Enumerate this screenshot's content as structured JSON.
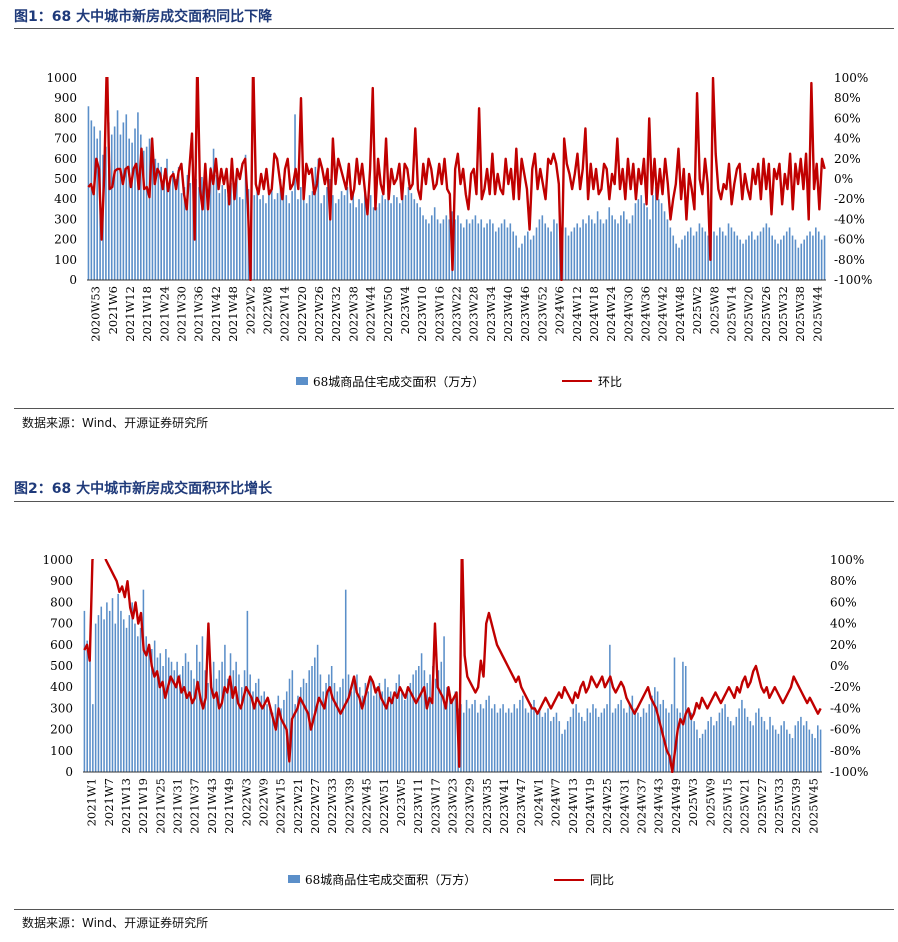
{
  "figures": [
    {
      "title": "图1：68 大中城市新房成交面积同比下降",
      "source": "数据来源：Wind、开源证券研究所",
      "legend": {
        "bar_label": "68城商品住宅成交面积（万方）",
        "line_label": "环比"
      },
      "colors": {
        "bar": "#5b8fc9",
        "line": "#c00000"
      }
    },
    {
      "title": "图2：68 大中城市新房成交面积环比增长",
      "source": "数据来源：Wind、开源证券研究所",
      "legend": {
        "bar_label": "68城商品住宅成交面积（万方）",
        "line_label": "同比"
      },
      "colors": {
        "bar": "#5b8fc9",
        "line": "#c00000"
      }
    }
  ],
  "chart_data": [
    {
      "type": "bar+line",
      "left_axis": {
        "range": [
          0,
          1000
        ],
        "ticks": [
          0,
          100,
          200,
          300,
          400,
          500,
          600,
          700,
          800,
          900,
          1000
        ]
      },
      "right_axis": {
        "range": [
          -100,
          100
        ],
        "ticks": [
          "-100%",
          "-80%",
          "-60%",
          "-40%",
          "-20%",
          "0%",
          "20%",
          "40%",
          "60%",
          "80%",
          "100%"
        ]
      },
      "x_tick_labels": [
        "2020W53",
        "2021W6",
        "2021W12",
        "2021W18",
        "2021W24",
        "2021W30",
        "2021W36",
        "2021W42",
        "2021W48",
        "2022W2",
        "2022W8",
        "2022W14",
        "2022W20",
        "2022W26",
        "2022W32",
        "2022W38",
        "2022W44",
        "2022W50",
        "2023W4",
        "2023W10",
        "2023W16",
        "2023W22",
        "2023W28",
        "2023W34",
        "2023W40",
        "2023W46",
        "2023W52",
        "2024W6",
        "2024W12",
        "2024W18",
        "2024W24",
        "2024W30",
        "2024W36",
        "2024W42",
        "2024W48",
        "2025W2",
        "2025W8",
        "2025W14",
        "2025W20",
        "2025W26",
        "2025W32",
        "2025W38",
        "2025W44"
      ],
      "bar_series": {
        "name": "68城商品住宅成交面积（万方）",
        "values": [
          860,
          790,
          760,
          700,
          740,
          620,
          660,
          780,
          720,
          760,
          840,
          720,
          780,
          820,
          700,
          680,
          750,
          830,
          720,
          640,
          660,
          700,
          620,
          600,
          580,
          560,
          520,
          600,
          480,
          540,
          500,
          560,
          430,
          460,
          520,
          480,
          440,
          500,
          460,
          510,
          480,
          420,
          560,
          650,
          520,
          430,
          470,
          450,
          420,
          480,
          440,
          520,
          410,
          400,
          620,
          450,
          380,
          420,
          440,
          400,
          420,
          380,
          440,
          480,
          400,
          430,
          500,
          460,
          420,
          380,
          440,
          820,
          400,
          460,
          480,
          380,
          420,
          440,
          560,
          600,
          380,
          420,
          460,
          500,
          420,
          380,
          400,
          440,
          420,
          460,
          380,
          440,
          360,
          400,
          380,
          430,
          400,
          420,
          360,
          360,
          380,
          420,
          400,
          430,
          380,
          420,
          410,
          380,
          440,
          420,
          460,
          430,
          400,
          380,
          360,
          320,
          300,
          280,
          320,
          360,
          300,
          280,
          300,
          320,
          300,
          340,
          300,
          320,
          280,
          260,
          300,
          280,
          300,
          320,
          280,
          300,
          260,
          280,
          300,
          280,
          240,
          260,
          280,
          300,
          260,
          280,
          240,
          220,
          160,
          180,
          220,
          240,
          200,
          220,
          260,
          300,
          320,
          280,
          260,
          240,
          300,
          280,
          320,
          300,
          260,
          220,
          240,
          260,
          280,
          260,
          300,
          280,
          320,
          300,
          280,
          340,
          300,
          280,
          300,
          360,
          320,
          300,
          280,
          320,
          340,
          300,
          280,
          320,
          380,
          400,
          420,
          380,
          360,
          300,
          420,
          460,
          400,
          380,
          340,
          300,
          260,
          220,
          180,
          160,
          200,
          220,
          240,
          260,
          220,
          240,
          280,
          260,
          240,
          220,
          260,
          240,
          220,
          260,
          240,
          220,
          280,
          260,
          240,
          220,
          200,
          180,
          200,
          220,
          240,
          200,
          220,
          240,
          260,
          280,
          260,
          220,
          200,
          180,
          200,
          220,
          240,
          260,
          220,
          200,
          160,
          180,
          200,
          220,
          240,
          220,
          260,
          240,
          200,
          220
        ],
        "color": "#5b8fc9"
      },
      "line_series": {
        "name": "环比",
        "values": [
          -8,
          -5,
          -15,
          20,
          10,
          -60,
          5,
          120,
          -10,
          -8,
          8,
          10,
          10,
          -5,
          10,
          12,
          -8,
          10,
          15,
          -10,
          30,
          -10,
          -8,
          -18,
          40,
          -5,
          10,
          5,
          -10,
          10,
          -12,
          2,
          5,
          -10,
          8,
          15,
          -15,
          -30,
          10,
          45,
          -60,
          120,
          -10,
          -30,
          15,
          -30,
          10,
          -5,
          20,
          -10,
          10,
          -5,
          10,
          -25,
          20,
          -20,
          10,
          0,
          15,
          20,
          -25,
          -100,
          120,
          -5,
          -15,
          5,
          -10,
          10,
          -15,
          -10,
          25,
          20,
          0,
          -20,
          10,
          20,
          -10,
          -5,
          10,
          -10,
          80,
          -20,
          15,
          5,
          10,
          -15,
          -5,
          20,
          10,
          -5,
          10,
          -40,
          40,
          -5,
          20,
          10,
          0,
          -10,
          15,
          -20,
          -10,
          20,
          -5,
          15,
          -10,
          -35,
          10,
          90,
          -30,
          20,
          -5,
          -15,
          40,
          -20,
          10,
          -5,
          0,
          15,
          -20,
          15,
          10,
          -10,
          -5,
          50,
          -10,
          -20,
          15,
          -5,
          20,
          10,
          -10,
          -5,
          15,
          -5,
          20,
          -10,
          -15,
          -90,
          10,
          25,
          -5,
          10,
          -15,
          -30,
          5,
          10,
          -15,
          70,
          -20,
          -10,
          10,
          -15,
          25,
          -15,
          5,
          -10,
          -15,
          20,
          -5,
          10,
          -20,
          30,
          -20,
          20,
          5,
          -10,
          -50,
          10,
          25,
          -10,
          10,
          -5,
          -20,
          20,
          15,
          25,
          15,
          -5,
          -100,
          40,
          15,
          5,
          -10,
          5,
          25,
          -10,
          10,
          50,
          -20,
          15,
          -10,
          10,
          -15,
          -10,
          15,
          10,
          -20,
          5,
          -5,
          40,
          -10,
          10,
          -20,
          20,
          -10,
          15,
          -20,
          10,
          -5,
          20,
          -25,
          60,
          -15,
          20,
          -20,
          10,
          -15,
          20,
          -5,
          -40,
          -20,
          -5,
          30,
          -20,
          10,
          -40,
          5,
          -10,
          -30,
          85,
          0,
          -15,
          20,
          -5,
          -80,
          100,
          25,
          -10,
          -20,
          -5,
          -10,
          15,
          -25,
          -5,
          10,
          15,
          -20,
          5,
          -10,
          -20,
          10,
          -5,
          15,
          -20,
          20,
          -10,
          15,
          -35,
          10,
          0,
          15,
          -25,
          5,
          -10,
          25,
          -30,
          15,
          -5,
          20,
          -10,
          25,
          -40,
          95,
          -10,
          15,
          -30,
          20,
          10
        ],
        "color": "#c00000"
      }
    },
    {
      "type": "bar+line",
      "left_axis": {
        "range": [
          0,
          1000
        ],
        "ticks": [
          0,
          100,
          200,
          300,
          400,
          500,
          600,
          700,
          800,
          900,
          1000
        ]
      },
      "right_axis": {
        "range": [
          -100,
          100
        ],
        "ticks": [
          "-100%",
          "-80%",
          "-60%",
          "-40%",
          "-20%",
          "0%",
          "20%",
          "40%",
          "60%",
          "80%",
          "100%"
        ]
      },
      "x_tick_labels": [
        "2021W1",
        "2021W7",
        "2021W13",
        "2021W19",
        "2021W25",
        "2021W31",
        "2021W37",
        "2021W43",
        "2021W49",
        "2022W3",
        "2022W9",
        "2022W15",
        "2022W21",
        "2022W27",
        "2022W33",
        "2022W39",
        "2022W45",
        "2022W51",
        "2023W5",
        "2023W11",
        "2023W17",
        "2023W23",
        "2023W29",
        "2023W35",
        "2023W41",
        "2023W47",
        "2024W1",
        "2024W7",
        "2024W13",
        "2024W19",
        "2024W25",
        "2024W31",
        "2024W37",
        "2024W43",
        "2024W49",
        "2025W3",
        "2025W9",
        "2025W15",
        "2025W21",
        "2025W27",
        "2025W33",
        "2025W39",
        "2025W45"
      ],
      "bar_series": {
        "name": "68城商品住宅成交面积（万方）",
        "values": [
          760,
          620,
          540,
          320,
          700,
          740,
          780,
          720,
          800,
          760,
          820,
          700,
          840,
          760,
          720,
          680,
          740,
          800,
          700,
          640,
          680,
          860,
          640,
          600,
          580,
          620,
          540,
          560,
          500,
          580,
          540,
          520,
          480,
          520,
          460,
          500,
          560,
          520,
          480,
          440,
          600,
          520,
          640,
          480,
          420,
          460,
          520,
          440,
          480,
          520,
          600,
          440,
          560,
          480,
          520,
          460,
          400,
          480,
          760,
          460,
          380,
          420,
          440,
          360,
          380,
          320,
          300,
          280,
          320,
          360,
          300,
          340,
          380,
          440,
          480,
          320,
          360,
          400,
          440,
          420,
          480,
          500,
          540,
          600,
          460,
          380,
          420,
          460,
          500,
          420,
          380,
          400,
          440,
          860,
          460,
          380,
          420,
          460,
          400,
          360,
          420,
          380,
          440,
          360,
          400,
          420,
          380,
          440,
          400,
          380,
          360,
          420,
          460,
          380,
          340,
          400,
          420,
          460,
          480,
          500,
          560,
          480,
          420,
          460,
          500,
          440,
          480,
          520,
          640,
          400,
          360,
          340,
          380,
          300,
          320,
          280,
          340,
          300,
          320,
          340,
          280,
          320,
          300,
          340,
          360,
          300,
          320,
          280,
          300,
          320,
          280,
          300,
          280,
          320,
          300,
          340,
          360,
          300,
          280,
          320,
          340,
          280,
          300,
          260,
          280,
          300,
          240,
          260,
          280,
          240,
          180,
          200,
          240,
          260,
          300,
          320,
          280,
          260,
          240,
          300,
          280,
          320,
          300,
          260,
          280,
          300,
          320,
          600,
          280,
          300,
          320,
          340,
          300,
          280,
          320,
          360,
          300,
          280,
          260,
          300,
          280,
          320,
          360,
          400,
          380,
          320,
          340,
          300,
          280,
          320,
          540,
          300,
          280,
          520,
          500,
          300,
          280,
          240,
          200,
          160,
          180,
          200,
          240,
          260,
          220,
          240,
          280,
          300,
          320,
          260,
          240,
          220,
          260,
          300,
          340,
          300,
          260,
          240,
          220,
          280,
          300,
          260,
          240,
          200,
          260,
          220,
          200,
          180,
          220,
          240,
          200,
          180,
          160,
          220,
          240,
          260,
          220,
          240,
          200,
          180,
          160,
          220,
          200
        ],
        "color": "#5b8fc9"
      },
      "line_series": {
        "name": "同比",
        "values": [
          15,
          20,
          5,
          100,
          110,
          130,
          120,
          110,
          100,
          95,
          90,
          85,
          80,
          70,
          75,
          65,
          80,
          55,
          45,
          60,
          40,
          50,
          15,
          10,
          20,
          0,
          -10,
          -5,
          -20,
          -15,
          -30,
          -20,
          -10,
          -15,
          -20,
          -10,
          -25,
          -20,
          -30,
          -25,
          -35,
          -30,
          -15,
          -30,
          -40,
          -30,
          40,
          -20,
          -30,
          -25,
          -40,
          -35,
          -20,
          -25,
          -10,
          -30,
          -20,
          -35,
          -40,
          -30,
          -20,
          -25,
          -30,
          -40,
          -30,
          -35,
          -40,
          -35,
          -30,
          -40,
          -50,
          -60,
          -40,
          -50,
          -55,
          -60,
          -90,
          -50,
          -45,
          -40,
          -30,
          -35,
          -40,
          -45,
          -60,
          -50,
          -40,
          -30,
          -35,
          -40,
          -25,
          -20,
          -30,
          -35,
          -40,
          -45,
          -40,
          -35,
          -30,
          -20,
          -10,
          -25,
          -30,
          -40,
          -30,
          -20,
          -10,
          -15,
          -25,
          -20,
          -30,
          -35,
          -40,
          -30,
          -35,
          -25,
          -30,
          -20,
          -25,
          -30,
          -20,
          -25,
          -30,
          -35,
          -30,
          -25,
          -20,
          -40,
          -30,
          -35,
          40,
          -20,
          -25,
          -30,
          -40,
          -20,
          -35,
          -30,
          -25,
          -95,
          120,
          10,
          -10,
          -15,
          -20,
          -25,
          -20,
          5,
          -10,
          40,
          50,
          40,
          30,
          20,
          15,
          10,
          5,
          0,
          -5,
          -10,
          -15,
          -10,
          -20,
          -25,
          -30,
          -35,
          -40,
          -40,
          -45,
          -40,
          -35,
          -30,
          -35,
          -40,
          -35,
          -30,
          -25,
          -30,
          -20,
          -25,
          -30,
          -35,
          -25,
          -30,
          -20,
          -15,
          -25,
          -20,
          -10,
          -15,
          -20,
          -15,
          -10,
          -20,
          -15,
          -10,
          -20,
          -25,
          -20,
          -15,
          -20,
          -30,
          -35,
          -40,
          -45,
          -40,
          -35,
          -30,
          -25,
          -20,
          -30,
          -35,
          -40,
          -50,
          -60,
          -70,
          -80,
          -85,
          -100,
          -80,
          -60,
          -50,
          -55,
          -45,
          -40,
          -50,
          -45,
          -35,
          -40,
          -30,
          -35,
          -40,
          -35,
          -30,
          -25,
          -30,
          -35,
          -30,
          -25,
          -20,
          -25,
          -30,
          -20,
          -25,
          -15,
          -10,
          -20,
          -15,
          -5,
          0,
          -10,
          -20,
          -25,
          -20,
          -30,
          -25,
          -20,
          -25,
          -30,
          -35,
          -30,
          -25,
          -20,
          -10,
          -15,
          -20,
          -25,
          -30,
          -35,
          -30,
          -35,
          -40,
          -45,
          -40
        ],
        "color": "#c00000"
      }
    }
  ]
}
